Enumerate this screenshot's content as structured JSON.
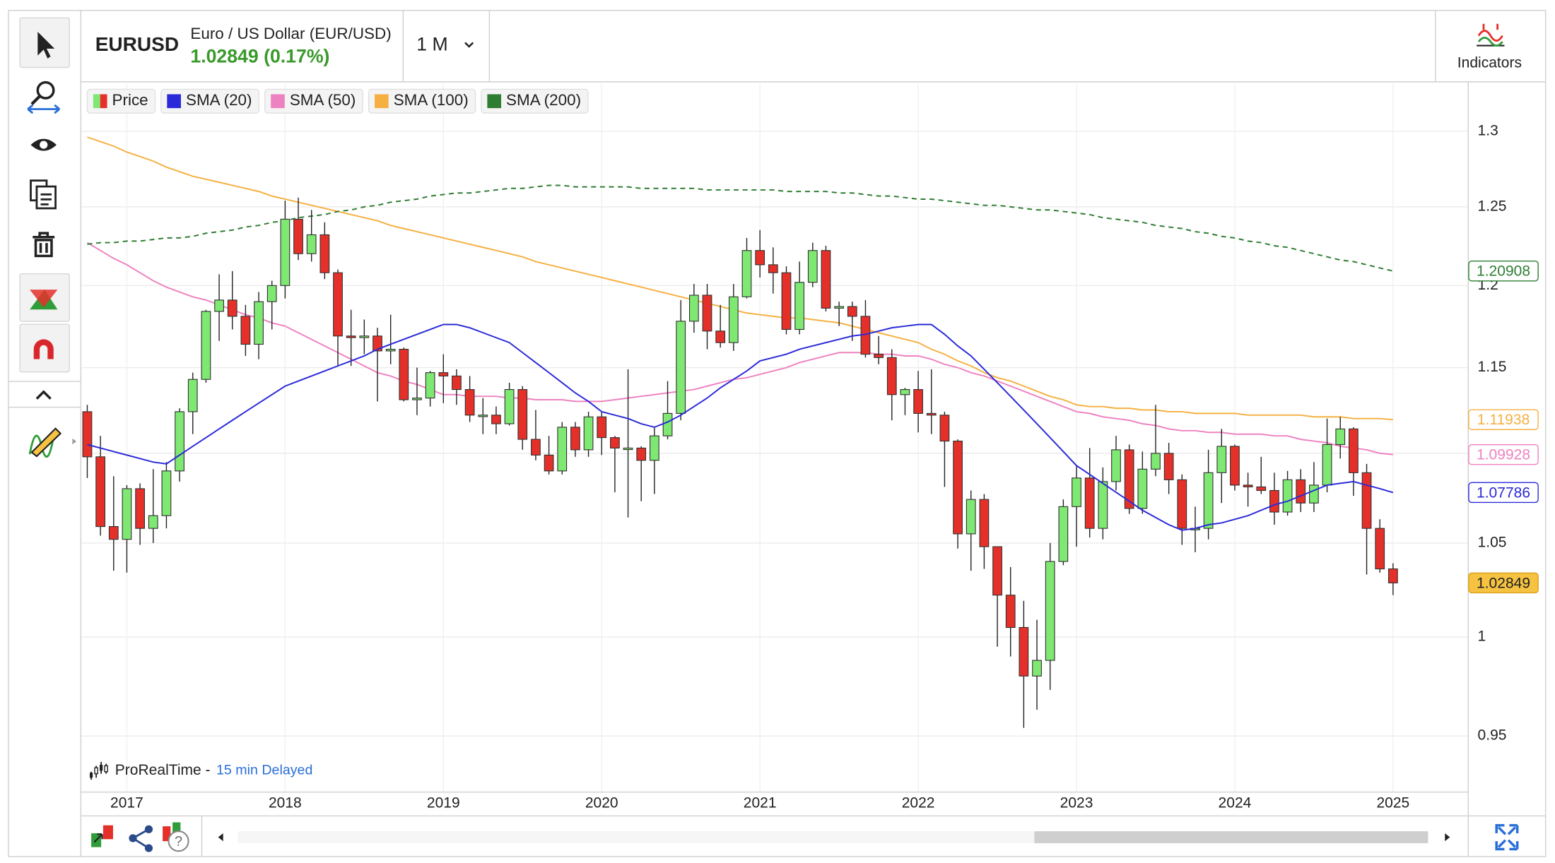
{
  "header": {
    "symbol": "EURUSD",
    "name": "Euro / US Dollar (EUR/USD)",
    "quote": "1.02849 (0.17%)",
    "timeframe": "1 M",
    "indicators": "Indicators"
  },
  "footer": {
    "source": "ProRealTime -",
    "delay": "15 min Delayed"
  },
  "chart_data": {
    "type": "candlestick",
    "price_name": "Price",
    "up_color": "#7ee873",
    "down_color": "#e5302a",
    "log_scale": true,
    "grid": true,
    "ylim": [
      0.923,
      1.332
    ],
    "yticks": [
      0.95,
      1,
      1.05,
      1.1,
      1.15,
      1.2,
      1.25,
      1.3
    ],
    "categories": [
      null,
      null,
      null,
      "2017",
      null,
      null,
      null,
      null,
      null,
      null,
      null,
      null,
      null,
      null,
      null,
      "2018",
      null,
      null,
      null,
      null,
      null,
      null,
      null,
      null,
      null,
      null,
      null,
      "2019",
      null,
      null,
      null,
      null,
      null,
      null,
      null,
      null,
      null,
      null,
      null,
      "2020",
      null,
      null,
      null,
      null,
      null,
      null,
      null,
      null,
      null,
      null,
      null,
      "2021",
      null,
      null,
      null,
      null,
      null,
      null,
      null,
      null,
      null,
      null,
      null,
      "2022",
      null,
      null,
      null,
      null,
      null,
      null,
      null,
      null,
      null,
      null,
      null,
      "2023",
      null,
      null,
      null,
      null,
      null,
      null,
      null,
      null,
      null,
      null,
      null,
      "2024",
      null,
      null,
      null,
      null,
      null,
      null,
      null,
      null,
      null,
      null,
      null,
      "2025"
    ],
    "open": [
      1.124,
      1.098,
      1.059,
      1.052,
      1.08,
      1.058,
      1.065,
      1.09,
      1.124,
      1.143,
      1.184,
      1.191,
      1.181,
      1.164,
      1.19,
      1.2,
      1.242,
      1.22,
      1.232,
      1.208,
      1.169,
      1.168,
      1.169,
      1.16,
      1.161,
      1.131,
      1.132,
      1.147,
      1.145,
      1.137,
      1.122,
      1.122,
      1.117,
      1.137,
      1.108,
      1.099,
      1.09,
      1.115,
      1.102,
      1.121,
      1.109,
      1.103,
      1.103,
      1.096,
      1.11,
      1.123,
      1.178,
      1.194,
      1.172,
      1.165,
      1.193,
      1.222,
      1.213,
      1.208,
      1.173,
      1.202,
      1.222,
      1.186,
      1.187,
      1.181,
      1.158,
      1.156,
      1.134,
      1.137,
      1.123,
      1.122,
      1.107,
      1.055,
      1.074,
      1.048,
      1.022,
      1.005,
      0.98,
      0.988,
      1.04,
      1.07,
      1.086,
      1.058,
      1.084,
      1.102,
      1.069,
      1.091,
      1.1,
      1.085,
      1.058,
      1.058,
      1.089,
      1.104,
      1.082,
      1.081,
      1.079,
      1.067,
      1.085,
      1.072,
      1.082,
      1.105,
      1.114,
      1.089,
      1.058,
      1.036
    ],
    "high": [
      1.128,
      1.11,
      1.087,
      1.082,
      1.083,
      1.091,
      1.095,
      1.126,
      1.147,
      1.185,
      1.207,
      1.209,
      1.188,
      1.196,
      1.203,
      1.254,
      1.256,
      1.248,
      1.24,
      1.21,
      1.185,
      1.179,
      1.174,
      1.182,
      1.162,
      1.15,
      1.148,
      1.158,
      1.149,
      1.145,
      1.132,
      1.127,
      1.141,
      1.139,
      1.125,
      1.11,
      1.118,
      1.118,
      1.124,
      1.124,
      1.11,
      1.149,
      1.104,
      1.115,
      1.142,
      1.191,
      1.201,
      1.201,
      1.188,
      1.201,
      1.23,
      1.235,
      1.224,
      1.212,
      1.215,
      1.227,
      1.225,
      1.19,
      1.19,
      1.191,
      1.169,
      1.161,
      1.138,
      1.148,
      1.149,
      1.124,
      1.108,
      1.079,
      1.077,
      1.048,
      1.037,
      1.019,
      1.009,
      1.05,
      1.074,
      1.093,
      1.103,
      1.092,
      1.11,
      1.105,
      1.101,
      1.128,
      1.106,
      1.088,
      1.07,
      1.102,
      1.114,
      1.105,
      1.089,
      1.098,
      1.089,
      1.09,
      1.091,
      1.095,
      1.12,
      1.121,
      1.115,
      1.094,
      1.063,
      1.039
    ],
    "low": [
      1.086,
      1.054,
      1.035,
      1.034,
      1.049,
      1.05,
      1.058,
      1.084,
      1.111,
      1.141,
      1.166,
      1.173,
      1.157,
      1.155,
      1.173,
      1.192,
      1.216,
      1.215,
      1.204,
      1.151,
      1.151,
      1.158,
      1.13,
      1.152,
      1.13,
      1.122,
      1.127,
      1.129,
      1.128,
      1.118,
      1.111,
      1.111,
      1.116,
      1.102,
      1.096,
      1.088,
      1.088,
      1.098,
      1.098,
      1.099,
      1.078,
      1.064,
      1.073,
      1.077,
      1.108,
      1.119,
      1.171,
      1.161,
      1.162,
      1.16,
      1.192,
      1.205,
      1.195,
      1.17,
      1.17,
      1.199,
      1.184,
      1.175,
      1.166,
      1.156,
      1.152,
      1.119,
      1.122,
      1.112,
      1.111,
      1.081,
      1.047,
      1.035,
      1.036,
      0.995,
      0.99,
      0.954,
      0.963,
      0.973,
      1.038,
      1.048,
      1.053,
      1.052,
      1.079,
      1.066,
      1.066,
      1.087,
      1.077,
      1.049,
      1.045,
      1.052,
      1.072,
      1.079,
      1.07,
      1.077,
      1.06,
      1.065,
      1.067,
      1.067,
      1.078,
      1.097,
      1.076,
      1.033,
      1.034,
      1.022
    ],
    "close": [
      1.098,
      1.059,
      1.052,
      1.08,
      1.058,
      1.065,
      1.09,
      1.124,
      1.143,
      1.184,
      1.191,
      1.181,
      1.164,
      1.19,
      1.2,
      1.242,
      1.22,
      1.232,
      1.208,
      1.169,
      1.168,
      1.169,
      1.16,
      1.161,
      1.131,
      1.132,
      1.147,
      1.145,
      1.137,
      1.122,
      1.122,
      1.117,
      1.137,
      1.108,
      1.099,
      1.09,
      1.115,
      1.102,
      1.121,
      1.109,
      1.103,
      1.103,
      1.096,
      1.11,
      1.123,
      1.178,
      1.194,
      1.172,
      1.165,
      1.193,
      1.222,
      1.213,
      1.208,
      1.173,
      1.202,
      1.222,
      1.186,
      1.187,
      1.181,
      1.158,
      1.156,
      1.134,
      1.137,
      1.123,
      1.122,
      1.107,
      1.055,
      1.074,
      1.048,
      1.022,
      1.005,
      0.98,
      0.988,
      1.04,
      1.07,
      1.086,
      1.058,
      1.084,
      1.102,
      1.069,
      1.091,
      1.1,
      1.085,
      1.058,
      1.058,
      1.089,
      1.104,
      1.082,
      1.081,
      1.079,
      1.067,
      1.085,
      1.072,
      1.082,
      1.105,
      1.114,
      1.089,
      1.058,
      1.036,
      1.02849
    ],
    "series": [
      {
        "name": "SMA (20)",
        "color": "#2a2ad8",
        "values": [
          1.105,
          1.103,
          1.101,
          1.099,
          1.097,
          1.095,
          1.094,
          1.099,
          1.104,
          1.109,
          1.114,
          1.119,
          1.124,
          1.129,
          1.134,
          1.139,
          1.142,
          1.145,
          1.148,
          1.151,
          1.154,
          1.157,
          1.161,
          1.164,
          1.167,
          1.17,
          1.173,
          1.176,
          1.176,
          1.174,
          1.171,
          1.168,
          1.165,
          1.159,
          1.153,
          1.147,
          1.141,
          1.135,
          1.13,
          1.124,
          1.122,
          1.12,
          1.117,
          1.115,
          1.118,
          1.122,
          1.127,
          1.132,
          1.138,
          1.143,
          1.148,
          1.154,
          1.156,
          1.158,
          1.161,
          1.163,
          1.165,
          1.167,
          1.169,
          1.17,
          1.172,
          1.174,
          1.175,
          1.176,
          1.176,
          1.17,
          1.163,
          1.157,
          1.149,
          1.141,
          1.133,
          1.125,
          1.117,
          1.109,
          1.101,
          1.093,
          1.088,
          1.083,
          1.078,
          1.073,
          1.068,
          1.064,
          1.06,
          1.057,
          1.058,
          1.06,
          1.061,
          1.063,
          1.065,
          1.068,
          1.071,
          1.073,
          1.076,
          1.079,
          1.082,
          1.083,
          1.084,
          1.082,
          1.08,
          1.07786
        ]
      },
      {
        "name": "SMA (50)",
        "color": "#ee82c0",
        "values": [
          1.227,
          1.222,
          1.217,
          1.213,
          1.208,
          1.203,
          1.199,
          1.196,
          1.193,
          1.191,
          1.188,
          1.185,
          1.182,
          1.18,
          1.177,
          1.175,
          1.171,
          1.167,
          1.163,
          1.159,
          1.155,
          1.151,
          1.147,
          1.145,
          1.142,
          1.14,
          1.137,
          1.134,
          1.134,
          1.133,
          1.133,
          1.133,
          1.132,
          1.132,
          1.131,
          1.131,
          1.131,
          1.13,
          1.13,
          1.13,
          1.131,
          1.132,
          1.133,
          1.134,
          1.135,
          1.136,
          1.137,
          1.139,
          1.141,
          1.143,
          1.144,
          1.146,
          1.148,
          1.15,
          1.153,
          1.155,
          1.157,
          1.159,
          1.159,
          1.159,
          1.158,
          1.158,
          1.157,
          1.157,
          1.155,
          1.152,
          1.15,
          1.147,
          1.145,
          1.142,
          1.139,
          1.136,
          1.133,
          1.13,
          1.127,
          1.124,
          1.123,
          1.121,
          1.12,
          1.119,
          1.117,
          1.116,
          1.114,
          1.113,
          1.113,
          1.112,
          1.112,
          1.111,
          1.111,
          1.111,
          1.11,
          1.11,
          1.108,
          1.107,
          1.106,
          1.104,
          1.103,
          1.102,
          1.1,
          1.09928
        ]
      },
      {
        "name": "SMA (100)",
        "color": "#f5b041",
        "values": [
          1.296,
          1.293,
          1.29,
          1.286,
          1.283,
          1.28,
          1.276,
          1.273,
          1.27,
          1.268,
          1.266,
          1.264,
          1.262,
          1.26,
          1.257,
          1.255,
          1.253,
          1.251,
          1.249,
          1.247,
          1.245,
          1.243,
          1.241,
          1.238,
          1.236,
          1.234,
          1.232,
          1.23,
          1.228,
          1.226,
          1.224,
          1.222,
          1.22,
          1.218,
          1.215,
          1.213,
          1.211,
          1.209,
          1.207,
          1.205,
          1.203,
          1.201,
          1.199,
          1.197,
          1.195,
          1.193,
          1.191,
          1.189,
          1.187,
          1.185,
          1.183,
          1.182,
          1.181,
          1.18,
          1.18,
          1.179,
          1.178,
          1.177,
          1.175,
          1.173,
          1.171,
          1.169,
          1.167,
          1.165,
          1.161,
          1.158,
          1.154,
          1.151,
          1.147,
          1.144,
          1.142,
          1.139,
          1.136,
          1.133,
          1.131,
          1.128,
          1.127,
          1.127,
          1.126,
          1.126,
          1.125,
          1.125,
          1.124,
          1.124,
          1.123,
          1.123,
          1.123,
          1.123,
          1.122,
          1.122,
          1.122,
          1.122,
          1.122,
          1.121,
          1.121,
          1.121,
          1.12,
          1.12,
          1.12,
          1.11938
        ]
      },
      {
        "name": "SMA (200)",
        "color": "#2e7d32",
        "dashed": true,
        "values": [
          1.226,
          1.227,
          1.227,
          1.228,
          1.228,
          1.229,
          1.23,
          1.23,
          1.231,
          1.233,
          1.234,
          1.235,
          1.237,
          1.238,
          1.24,
          1.241,
          1.243,
          1.244,
          1.245,
          1.247,
          1.248,
          1.25,
          1.251,
          1.253,
          1.254,
          1.255,
          1.257,
          1.258,
          1.259,
          1.259,
          1.26,
          1.261,
          1.262,
          1.262,
          1.263,
          1.264,
          1.264,
          1.263,
          1.263,
          1.263,
          1.263,
          1.263,
          1.262,
          1.262,
          1.262,
          1.262,
          1.262,
          1.261,
          1.261,
          1.261,
          1.261,
          1.261,
          1.261,
          1.26,
          1.26,
          1.26,
          1.26,
          1.259,
          1.259,
          1.258,
          1.257,
          1.257,
          1.256,
          1.255,
          1.255,
          1.254,
          1.253,
          1.252,
          1.251,
          1.251,
          1.25,
          1.249,
          1.248,
          1.248,
          1.247,
          1.246,
          1.245,
          1.243,
          1.242,
          1.241,
          1.24,
          1.238,
          1.237,
          1.236,
          1.234,
          1.233,
          1.231,
          1.23,
          1.228,
          1.227,
          1.225,
          1.224,
          1.222,
          1.22,
          1.218,
          1.216,
          1.215,
          1.213,
          1.211,
          1.20908
        ]
      }
    ]
  }
}
